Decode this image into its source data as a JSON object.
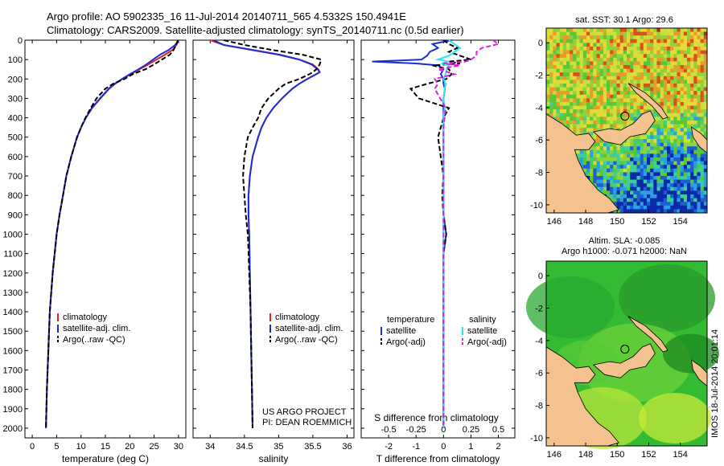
{
  "title": {
    "line1": "Argo profile: AO 5902335_16 11-Jul-2014 20140711_565 4.5332S 150.4941E",
    "line2": "Climatology: CARS2009. Satellite-adjusted climatology: synTS_20140711.nc (0.5d earlier)"
  },
  "colors": {
    "clim": "#e8201e",
    "sat": "#1a2fd6",
    "argo": "#000000",
    "sat_sal": "#2ee6ee",
    "argo_sal": "#e020e0",
    "land": "#f4c28f"
  },
  "chart_data": [
    {
      "type": "line",
      "id": "temperature",
      "xlabel": "temperature (deg C)",
      "ylabel": "",
      "xlim": [
        -1.5,
        31.5
      ],
      "ylim": [
        2050,
        0
      ],
      "xticks": [
        0,
        5,
        10,
        15,
        20,
        25,
        30
      ],
      "yticks": [
        0,
        100,
        200,
        300,
        400,
        500,
        600,
        700,
        800,
        900,
        1000,
        1100,
        1200,
        1300,
        1400,
        1500,
        1600,
        1700,
        1800,
        1900,
        2000
      ],
      "depth": [
        0,
        25,
        50,
        75,
        100,
        125,
        150,
        175,
        200,
        225,
        250,
        300,
        350,
        400,
        450,
        500,
        600,
        700,
        800,
        900,
        1000,
        1200,
        1400,
        1600,
        1800,
        2000
      ],
      "series": [
        {
          "name": "climatology",
          "style": "solid",
          "color": "clim",
          "values": [
            29.8,
            29.6,
            28.8,
            27.2,
            25.5,
            23.8,
            22.0,
            20.2,
            18.5,
            17.0,
            15.8,
            14.0,
            12.3,
            11.0,
            10.0,
            9.2,
            8.0,
            7.0,
            6.3,
            5.6,
            5.0,
            4.2,
            3.6,
            3.3,
            3.0,
            2.8
          ]
        },
        {
          "name": "satellite-adj. clim.",
          "style": "solid",
          "color": "sat",
          "values": [
            30.0,
            29.3,
            28.0,
            26.2,
            24.8,
            23.4,
            21.8,
            20.0,
            18.4,
            16.9,
            15.7,
            13.9,
            12.2,
            11.0,
            10.0,
            9.2,
            8.0,
            7.0,
            6.3,
            5.6,
            5.0,
            4.2,
            3.6,
            3.3,
            3.0,
            2.8
          ]
        },
        {
          "name": "Argo(..raw -QC)",
          "style": "dashed",
          "color": "argo",
          "values": [
            29.9,
            29.5,
            29.0,
            28.2,
            26.6,
            25.0,
            23.2,
            20.6,
            18.9,
            16.6,
            15.0,
            13.2,
            12.0,
            10.9,
            10.0,
            9.2,
            8.0,
            7.0,
            6.3,
            5.6,
            5.0,
            4.2,
            3.6,
            3.3,
            3.0,
            2.8
          ]
        }
      ]
    },
    {
      "type": "line",
      "id": "salinity",
      "xlabel": "salinity",
      "ylabel": "",
      "xlim": [
        33.75,
        36.1
      ],
      "ylim": [
        2050,
        0
      ],
      "xticks": [
        34,
        34.5,
        35,
        35.5,
        36
      ],
      "depth": [
        0,
        25,
        50,
        75,
        100,
        125,
        150,
        165,
        175,
        200,
        225,
        250,
        300,
        350,
        400,
        450,
        500,
        600,
        700,
        800,
        900,
        1000,
        1200,
        1400,
        1600,
        1800,
        2000
      ],
      "series": [
        {
          "name": "climatology",
          "style": "solid",
          "color": "clim",
          "values": [
            34.0,
            34.2,
            34.6,
            35.0,
            35.3,
            35.5,
            35.58,
            35.6,
            35.55,
            35.42,
            35.3,
            35.2,
            35.05,
            34.92,
            34.82,
            34.75,
            34.7,
            34.62,
            34.58,
            34.56,
            34.56,
            34.57,
            34.58,
            34.59,
            34.6,
            34.61,
            34.62
          ]
        },
        {
          "name": "satellite-adj. clim.",
          "style": "solid",
          "color": "sat",
          "values": [
            34.05,
            34.2,
            34.62,
            35.02,
            35.3,
            35.48,
            35.57,
            35.6,
            35.55,
            35.42,
            35.3,
            35.2,
            35.05,
            34.92,
            34.82,
            34.75,
            34.7,
            34.62,
            34.58,
            34.56,
            34.56,
            34.57,
            34.58,
            34.59,
            34.6,
            34.61,
            34.62
          ]
        },
        {
          "name": "Argo(..raw -QC)",
          "style": "dashed",
          "color": "argo",
          "values": [
            34.2,
            34.5,
            34.9,
            35.35,
            35.62,
            35.6,
            35.55,
            35.5,
            35.45,
            35.3,
            35.1,
            35.0,
            34.85,
            34.75,
            34.7,
            34.62,
            34.55,
            34.5,
            34.48,
            34.5,
            34.52,
            34.55,
            34.57,
            34.59,
            34.6,
            34.61,
            34.62
          ]
        }
      ],
      "annotation": {
        "line1": "US ARGO PROJECT",
        "line2": "PI: DEAN ROEMMICH"
      }
    },
    {
      "type": "line",
      "id": "difference",
      "xlabel": "T difference from climatology",
      "xlabel_top": "S difference from climatology",
      "xlim": [
        -3,
        2.6
      ],
      "ylim": [
        2050,
        0
      ],
      "xticks": [
        -2,
        -1,
        0,
        1,
        2
      ],
      "xticks_top": [
        {
          "label": "-0.5",
          "value": -0.5
        },
        {
          "label": "-0.25",
          "value": -0.25
        },
        {
          "label": "0",
          "value": 0
        },
        {
          "label": "0.25",
          "value": 0.25
        },
        {
          "label": "0.5",
          "value": 0.5
        }
      ],
      "s_scale": 4,
      "depth": [
        0,
        20,
        40,
        60,
        80,
        100,
        110,
        120,
        130,
        150,
        175,
        200,
        225,
        250,
        300,
        350,
        400,
        450,
        500,
        600,
        700,
        800,
        900,
        1000,
        1100,
        1200,
        1400,
        1600,
        1800,
        2000
      ],
      "series": [
        {
          "name": "satellite (temperature)",
          "style": "solid",
          "color": "sat",
          "unit": "T",
          "values": [
            0.3,
            -0.4,
            -0.2,
            -0.5,
            -0.6,
            -0.8,
            -2.6,
            -1.0,
            -0.2,
            0.0,
            -0.1,
            0.0,
            0.0,
            0.05,
            0.0,
            0.0,
            0.0,
            0.0,
            0.0,
            0.0,
            0.0,
            0.0,
            0.0,
            0.1,
            0.0,
            0.0,
            0.0,
            0.0,
            0.0,
            0.0
          ]
        },
        {
          "name": "Argo(-adj) (temperature)",
          "style": "dashed",
          "color": "argo",
          "unit": "T",
          "values": [
            0.0,
            0.2,
            0.5,
            0.2,
            0.6,
            1.0,
            0.2,
            0.6,
            -0.4,
            0.2,
            0.3,
            0.1,
            -0.6,
            -1.2,
            -0.9,
            0.2,
            0.0,
            -0.1,
            -0.2,
            -0.1,
            0.0,
            -0.05,
            0.0,
            0.1,
            0.0,
            0.0,
            0.0,
            0.0,
            0.0,
            0.0
          ]
        },
        {
          "name": "satellite (salinity)",
          "style": "solid",
          "color": "sat_sal",
          "unit": "S",
          "values": [
            0.05,
            0.1,
            0.15,
            0.1,
            0.05,
            -0.05,
            0.05,
            -0.02,
            0.05,
            0.03,
            0.02,
            0.0,
            0.02,
            0.01,
            0.0,
            0.01,
            0.0,
            0.0,
            0.0,
            0.0,
            0.0,
            0.0,
            0.0,
            0.0,
            0.0,
            0.0,
            0.0,
            0.0,
            0.0,
            0.0
          ]
        },
        {
          "name": "Argo(-adj) (salinity)",
          "style": "dashed",
          "color": "argo_sal",
          "unit": "S",
          "values": [
            0.45,
            0.5,
            0.35,
            0.3,
            0.3,
            0.25,
            0.2,
            0.0,
            0.15,
            -0.05,
            0.1,
            -0.08,
            -0.05,
            -0.08,
            -0.03,
            0.02,
            0.01,
            0.0,
            0.0,
            0.0,
            0.0,
            0.0,
            0.0,
            0.0,
            0.0,
            0.0,
            0.0,
            0.0,
            0.0,
            0.0
          ]
        }
      ]
    }
  ],
  "legends": {
    "temp": [
      "climatology",
      "satellite-adj. clim.",
      "Argo(..raw -QC)"
    ],
    "diff_head_t": "temperature",
    "diff_head_s": "salinity",
    "diff_t": [
      "satellite",
      "Argo(-adj)"
    ],
    "diff_s": [
      "satellite",
      "Argo(-adj)"
    ]
  },
  "maps": {
    "sst_title": "sat. SST: 30.1  Argo: 29.6",
    "sla_title1": "Altim. SLA: -0.085",
    "sla_title2": "Argo h1000: -0.071 h2000: NaN",
    "lon_ticks": [
      "146",
      "148",
      "150",
      "152",
      "154"
    ],
    "lat_ticks": [
      "0",
      "-2",
      "-4",
      "-6",
      "-8",
      "-10"
    ],
    "timestamp": "IMOS 18-Jul-2014 20:01:14"
  }
}
